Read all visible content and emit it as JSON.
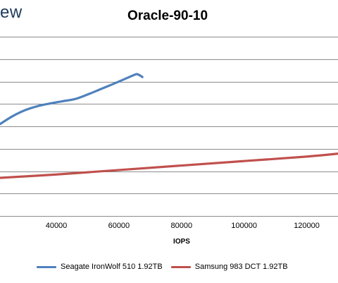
{
  "watermark": "ew",
  "chart_data": {
    "type": "line",
    "title": "Oracle-90-10",
    "xlabel": "IOPS",
    "ylabel": "",
    "xlim": [
      22000,
      130000
    ],
    "ylim": [
      0,
      8
    ],
    "x_ticks": [
      40000,
      60000,
      80000,
      100000,
      120000
    ],
    "grid": true,
    "legend_position": "bottom",
    "series": [
      {
        "name": "Seagate IronWolf 510 1.92TB",
        "color": "#4f81bd",
        "points": [
          [
            22000,
            4.1
          ],
          [
            26000,
            4.45
          ],
          [
            30000,
            4.72
          ],
          [
            34000,
            4.9
          ],
          [
            38000,
            5.02
          ],
          [
            42000,
            5.12
          ],
          [
            46000,
            5.22
          ],
          [
            50000,
            5.42
          ],
          [
            54000,
            5.65
          ],
          [
            58000,
            5.88
          ],
          [
            62000,
            6.12
          ],
          [
            65000,
            6.3
          ],
          [
            66000,
            6.32
          ],
          [
            67500,
            6.2
          ]
        ]
      },
      {
        "name": "Samsung 983 DCT 1.92TB",
        "color": "#c0504d",
        "points": [
          [
            22000,
            1.7
          ],
          [
            40000,
            1.85
          ],
          [
            60000,
            2.05
          ],
          [
            80000,
            2.25
          ],
          [
            100000,
            2.45
          ],
          [
            120000,
            2.65
          ],
          [
            130000,
            2.78
          ]
        ]
      }
    ]
  }
}
